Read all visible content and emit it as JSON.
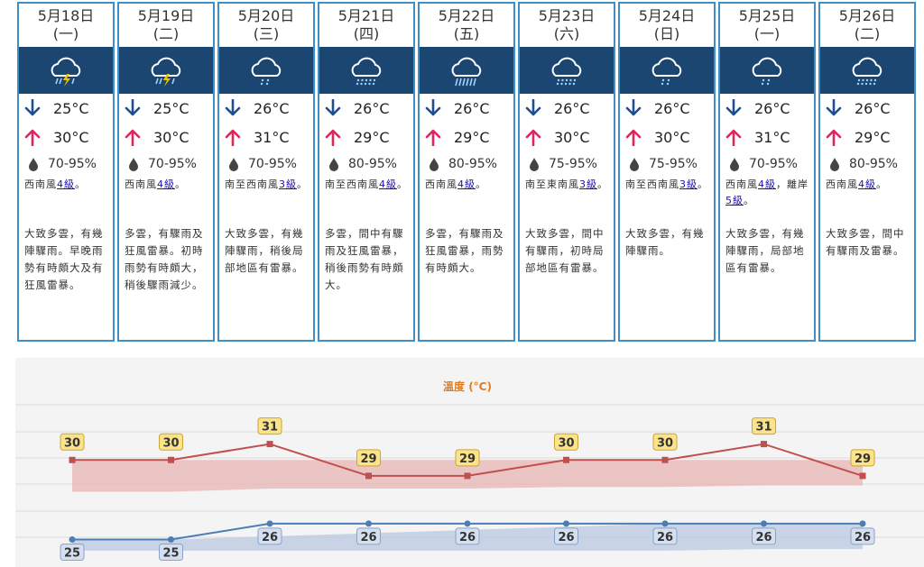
{
  "days": [
    {
      "date": "5月18日",
      "weekday": "(一)",
      "icon": "thunderstorm-icon",
      "min": "25°C",
      "max": "30°C",
      "humidity": "70-95%",
      "wind_pre": "西南風",
      "wind_force": "4級",
      "wind_mid": "。",
      "wind_force2": "",
      "wind_post": "",
      "desc": "大致多雲，有幾陣驟雨。早晚雨勢有時頗大及有狂風雷暴。"
    },
    {
      "date": "5月19日",
      "weekday": "(二)",
      "icon": "thunderstorm-icon",
      "min": "25°C",
      "max": "30°C",
      "humidity": "70-95%",
      "wind_pre": "西南風",
      "wind_force": "4級",
      "wind_mid": "。",
      "wind_force2": "",
      "wind_post": "",
      "desc": "多雲，有驟雨及狂風雷暴。初時雨勢有時頗大，稍後驟雨減少。"
    },
    {
      "date": "5月20日",
      "weekday": "(三)",
      "icon": "light-shower-icon",
      "min": "26°C",
      "max": "31°C",
      "humidity": "70-95%",
      "wind_pre": "南至西南風",
      "wind_force": "3級",
      "wind_mid": "。",
      "wind_force2": "",
      "wind_post": "",
      "desc": "大致多雲，有幾陣驟雨，稍後局部地區有雷暴。"
    },
    {
      "date": "5月21日",
      "weekday": "(四)",
      "icon": "shower-icon",
      "min": "26°C",
      "max": "29°C",
      "humidity": "80-95%",
      "wind_pre": "南至西南風",
      "wind_force": "4級",
      "wind_mid": "。",
      "wind_force2": "",
      "wind_post": "",
      "desc": "多雲，間中有驟雨及狂風雷暴，稍後雨勢有時頗大。"
    },
    {
      "date": "5月22日",
      "weekday": "(五)",
      "icon": "heavy-rain-icon",
      "min": "26°C",
      "max": "29°C",
      "humidity": "80-95%",
      "wind_pre": "西南風",
      "wind_force": "4級",
      "wind_mid": "。",
      "wind_force2": "",
      "wind_post": "",
      "desc": "多雲，有驟雨及狂風雷暴，雨勢有時頗大。"
    },
    {
      "date": "5月23日",
      "weekday": "(六)",
      "icon": "shower-icon",
      "min": "26°C",
      "max": "30°C",
      "humidity": "75-95%",
      "wind_pre": "南至東南風",
      "wind_force": "3級",
      "wind_mid": "。",
      "wind_force2": "",
      "wind_post": "",
      "desc": "大致多雲，間中有驟雨，初時局部地區有雷暴。"
    },
    {
      "date": "5月24日",
      "weekday": "(日)",
      "icon": "light-shower-icon",
      "min": "26°C",
      "max": "30°C",
      "humidity": "75-95%",
      "wind_pre": "南至西南風",
      "wind_force": "3級",
      "wind_mid": "。",
      "wind_force2": "",
      "wind_post": "",
      "desc": "大致多雲，有幾陣驟雨。"
    },
    {
      "date": "5月25日",
      "weekday": "(一)",
      "icon": "light-shower-icon",
      "min": "26°C",
      "max": "31°C",
      "humidity": "70-95%",
      "wind_pre": "西南風",
      "wind_force": "4級",
      "wind_mid": "，離岸",
      "wind_force2": "5級",
      "wind_post": "。",
      "desc": "大致多雲，有幾陣驟雨，局部地區有雷暴。"
    },
    {
      "date": "5月26日",
      "weekday": "(二)",
      "icon": "shower-icon",
      "min": "26°C",
      "max": "29°C",
      "humidity": "80-95%",
      "wind_pre": "西南風",
      "wind_force": "4級",
      "wind_mid": "。",
      "wind_force2": "",
      "wind_post": "",
      "desc": "大致多雲，間中有驟雨及雷暴。"
    }
  ],
  "chart_data": {
    "type": "line",
    "title": "溫度 (°C)",
    "categories": [
      "5月18日",
      "5月19日",
      "5月20日",
      "5月21日",
      "5月22日",
      "5月23日",
      "5月24日",
      "5月25日",
      "5月26日"
    ],
    "series": [
      {
        "name": "",
        "values": [
          30,
          30,
          31,
          29,
          29,
          30,
          30,
          31,
          29
        ],
        "color": "#c0504d"
      },
      {
        "name": "",
        "values": [
          25,
          25,
          26,
          26,
          26,
          26,
          26,
          26,
          26
        ],
        "color": "#4a7eb5"
      }
    ],
    "max_band": {
      "low": [
        28,
        28,
        28.2,
        28.2,
        28.2,
        28.3,
        28.3,
        28.4,
        28.4
      ],
      "high": [
        30,
        30,
        30,
        30,
        30,
        30,
        30,
        30,
        30
      ],
      "color": "#e8b4b4"
    },
    "min_band": {
      "low": [
        24.3,
        24.3,
        24.3,
        24.3,
        24.3,
        24.3,
        24.3,
        24.4,
        24.4
      ],
      "high": [
        25,
        25,
        25.2,
        25.4,
        25.6,
        25.8,
        26,
        26,
        26
      ],
      "color": "#b9c9e2"
    },
    "ylim": [
      23.5,
      33.3
    ],
    "grid": true,
    "title_color": "#e07b1f",
    "label_colors": {
      "max_fill": "#fbe38a",
      "max_border": "#c9a53a",
      "min_fill": "#d4dff0",
      "min_border": "#8aa2c8"
    }
  }
}
